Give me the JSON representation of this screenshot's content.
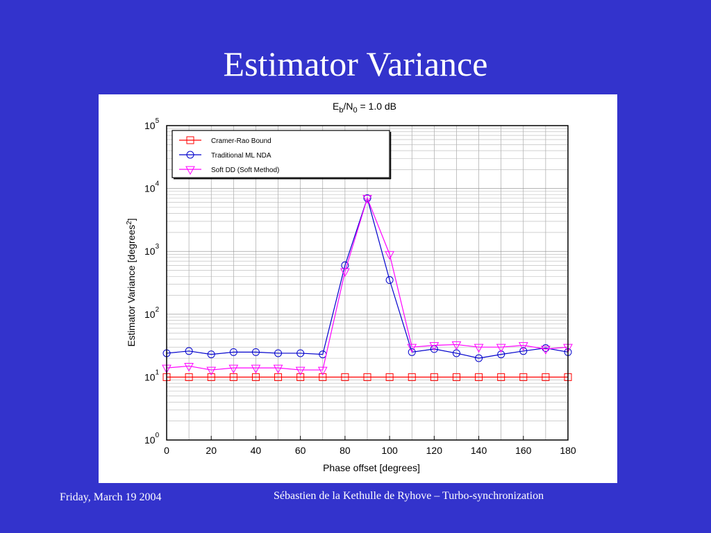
{
  "slide": {
    "title": "Estimator Variance",
    "footer_date": "Friday, March 19 2004",
    "footer_author": "Sébastien de la Kethulle de Ryhove – Turbo-synchronization"
  },
  "chart_data": {
    "type": "line",
    "title_base": "E",
    "title_sub1": "b",
    "title_mid": "/N",
    "title_sub2": "0",
    "title_tail": " = 1.0 dB",
    "xlabel": "Phase offset [degrees]",
    "ylabel_main": "Estimator Variance [degrees",
    "ylabel_sup": "2",
    "ylabel_end": "]",
    "xlim": [
      0,
      180
    ],
    "ylim_log10": [
      0,
      5
    ],
    "yscale": "log",
    "grid": true,
    "legend_position": "top-left",
    "x_ticks": [
      0,
      20,
      40,
      60,
      80,
      100,
      120,
      140,
      160,
      180
    ],
    "y_ticks": [
      {
        "base": "10",
        "exp": "0"
      },
      {
        "base": "10",
        "exp": "1"
      },
      {
        "base": "10",
        "exp": "2"
      },
      {
        "base": "10",
        "exp": "3"
      },
      {
        "base": "10",
        "exp": "4"
      },
      {
        "base": "10",
        "exp": "5"
      }
    ],
    "x": [
      0,
      10,
      20,
      30,
      40,
      50,
      60,
      70,
      80,
      90,
      100,
      110,
      120,
      130,
      140,
      150,
      160,
      170,
      180
    ],
    "series": [
      {
        "name": "Cramer-Rao Bound",
        "color": "#ff0000",
        "marker": "square",
        "values": [
          10,
          10,
          10,
          10,
          10,
          10,
          10,
          10,
          10,
          10,
          10,
          10,
          10,
          10,
          10,
          10,
          10,
          10,
          10
        ]
      },
      {
        "name": "Traditional ML NDA",
        "color": "#0000cc",
        "marker": "circle",
        "values": [
          24,
          26,
          23,
          25,
          25,
          24,
          24,
          23,
          600,
          7000,
          350,
          25,
          28,
          24,
          20,
          23,
          26,
          29,
          25
        ]
      },
      {
        "name": "Soft DD (Soft Method)",
        "color": "#ff00ff",
        "marker": "triangle-down",
        "values": [
          14,
          15,
          13,
          14,
          14,
          14,
          13,
          13,
          480,
          7000,
          900,
          30,
          32,
          33,
          30,
          30,
          32,
          28,
          30
        ]
      }
    ]
  }
}
